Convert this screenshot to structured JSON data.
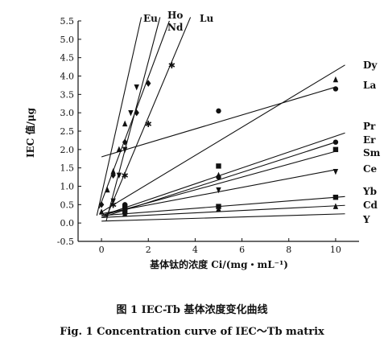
{
  "chart_data": {
    "type": "line",
    "title": "",
    "xlabel": "基体钛的浓度 Ci/(mg・mL⁻¹)",
    "ylabel": "IEC 值/μg",
    "xlim": [
      -1,
      11
    ],
    "ylim": [
      -0.5,
      5.5
    ],
    "xticks": [
      0,
      2,
      4,
      6,
      8,
      10
    ],
    "yticks": [
      -0.5,
      0.0,
      0.5,
      1.0,
      1.5,
      2.0,
      2.5,
      3.0,
      3.5,
      4.0,
      4.5,
      5.0,
      5.5
    ],
    "xtick_labels": [
      "0",
      "2",
      "4",
      "6",
      "8",
      "10"
    ],
    "ytick_labels": [
      "-0.5",
      "0.0",
      "0.5",
      "1.0",
      "1.5",
      "2.0",
      "2.5",
      "3.0",
      "3.5",
      "4.0",
      "4.5",
      "5.0",
      "5.5"
    ],
    "grid": false,
    "series": [
      {
        "name": "Eu",
        "marker": "triangle",
        "line": [
          [
            -0.2,
            0.2
          ],
          [
            1.7,
            5.6
          ]
        ],
        "points": [
          [
            0,
            0.3
          ],
          [
            0.25,
            0.9
          ],
          [
            0.5,
            1.4
          ],
          [
            0.75,
            2.0
          ],
          [
            1.0,
            2.7
          ]
        ]
      },
      {
        "name": "Ho",
        "marker": "triangle-down",
        "line": [
          [
            0.2,
            0.05
          ],
          [
            2.5,
            5.6
          ]
        ],
        "points": [
          [
            0.5,
            0.6
          ],
          [
            0.75,
            1.3
          ],
          [
            1.0,
            2.0
          ],
          [
            1.25,
            3.0
          ],
          [
            1.5,
            3.7
          ]
        ]
      },
      {
        "name": "Nd",
        "marker": "diamond",
        "line": [
          [
            -0.1,
            0.4
          ],
          [
            2.9,
            5.5
          ]
        ],
        "points": [
          [
            0,
            0.5
          ],
          [
            0.5,
            1.3
          ],
          [
            1.0,
            2.2
          ],
          [
            1.5,
            3.0
          ],
          [
            2.0,
            3.8
          ]
        ]
      },
      {
        "name": "Lu",
        "marker": "star",
        "line": [
          [
            0.2,
            0.15
          ],
          [
            3.8,
            5.6
          ]
        ],
        "points": [
          [
            0.5,
            0.5
          ],
          [
            1.0,
            1.3
          ],
          [
            2.0,
            2.7
          ],
          [
            3.0,
            4.3
          ]
        ]
      },
      {
        "name": "Dy",
        "marker": "none",
        "line": [
          [
            0,
            0.3
          ],
          [
            10.4,
            4.3
          ]
        ],
        "points": []
      },
      {
        "name": "La",
        "marker": "circle",
        "line": [
          [
            0,
            1.8
          ],
          [
            10,
            3.7
          ]
        ],
        "points": [
          [
            5,
            3.05
          ],
          [
            10,
            3.65
          ]
        ]
      },
      {
        "name": "Pr",
        "marker": "triangle",
        "line": [
          [
            0,
            0.2
          ],
          [
            10.4,
            2.45
          ]
        ],
        "points": [
          [
            1,
            0.45
          ],
          [
            5,
            1.3
          ],
          [
            10,
            3.9
          ]
        ]
      },
      {
        "name": "Er",
        "marker": "circle",
        "line": [
          [
            0,
            0.15
          ],
          [
            10,
            2.2
          ]
        ],
        "points": [
          [
            1,
            0.5
          ],
          [
            5,
            1.25
          ],
          [
            10,
            2.2
          ]
        ]
      },
      {
        "name": "Sm",
        "marker": "square",
        "line": [
          [
            0,
            0.2
          ],
          [
            10,
            1.95
          ]
        ],
        "points": [
          [
            1,
            0.45
          ],
          [
            5,
            1.55
          ],
          [
            10,
            2.0
          ]
        ]
      },
      {
        "name": "Ce",
        "marker": "triangle-down",
        "line": [
          [
            0,
            0.25
          ],
          [
            10,
            1.45
          ]
        ],
        "points": [
          [
            1,
            0.35
          ],
          [
            5,
            0.9
          ],
          [
            10,
            1.4
          ]
        ]
      },
      {
        "name": "Yb",
        "marker": "square",
        "line": [
          [
            0,
            0.2
          ],
          [
            10.4,
            0.72
          ]
        ],
        "points": [
          [
            1,
            0.3
          ],
          [
            5,
            0.45
          ],
          [
            10,
            0.7
          ]
        ]
      },
      {
        "name": "Cd",
        "marker": "triangle",
        "line": [
          [
            0,
            0.15
          ],
          [
            10.4,
            0.48
          ]
        ],
        "points": [
          [
            1,
            0.25
          ],
          [
            5,
            0.38
          ],
          [
            10,
            0.45
          ]
        ]
      },
      {
        "name": "Y",
        "marker": "none",
        "line": [
          [
            0,
            0.05
          ],
          [
            10.4,
            0.25
          ]
        ],
        "points": []
      }
    ]
  },
  "caption": {
    "chinese": "图 1   IEC-Tb 基体浓度变化曲线",
    "english": "Fig. 1   Concentration curve of IEC～Tb matrix"
  }
}
